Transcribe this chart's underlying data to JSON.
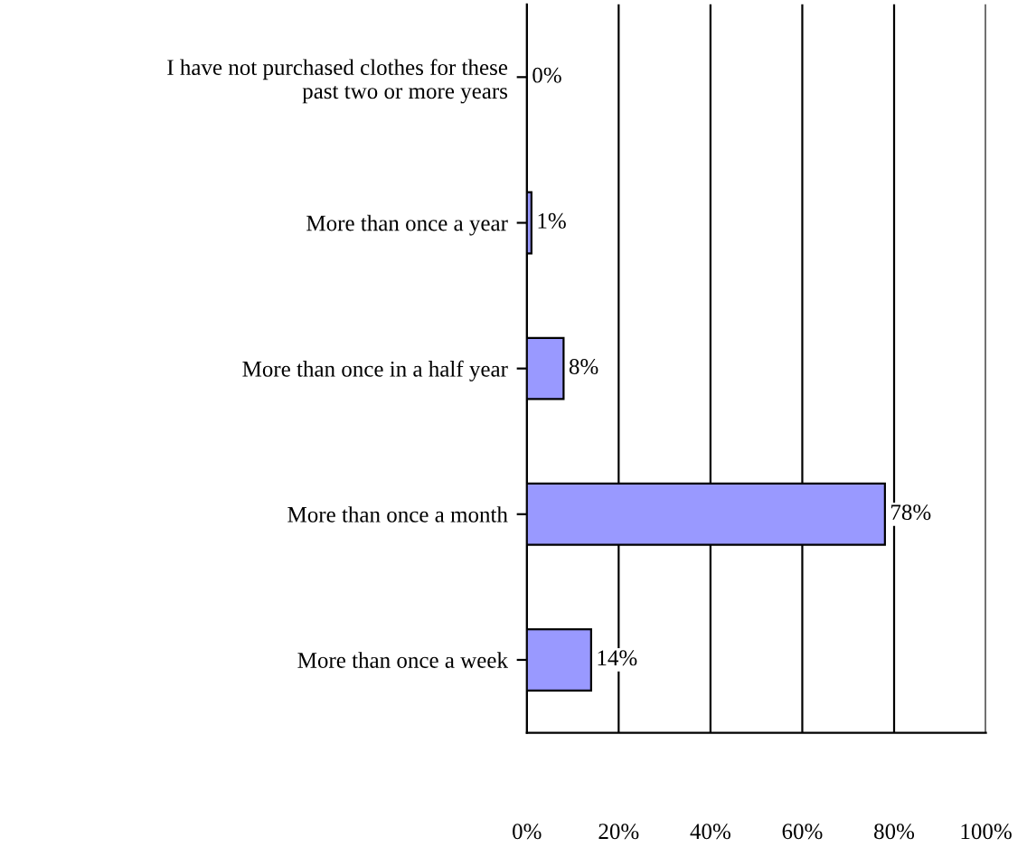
{
  "chart_data": {
    "type": "bar",
    "orientation": "horizontal",
    "categories": [
      "I have not purchased clothes for these\npast two or more years",
      "More than once a year",
      "More than once in a half year",
      "More than once a month",
      "More than once a week"
    ],
    "values": [
      0,
      1,
      8,
      78,
      14
    ],
    "value_labels": [
      "0%",
      "1%",
      "8%",
      "78%",
      "14%"
    ],
    "color": "#9999ff",
    "xlim": [
      0,
      100
    ],
    "xticks": [
      {
        "value": 0,
        "label": "0%"
      },
      {
        "value": 20,
        "label": "20%"
      },
      {
        "value": 40,
        "label": "40%"
      },
      {
        "value": 60,
        "label": "60%"
      },
      {
        "value": 80,
        "label": "80%"
      },
      {
        "value": 100,
        "label": "100%"
      }
    ],
    "grid": "x"
  }
}
